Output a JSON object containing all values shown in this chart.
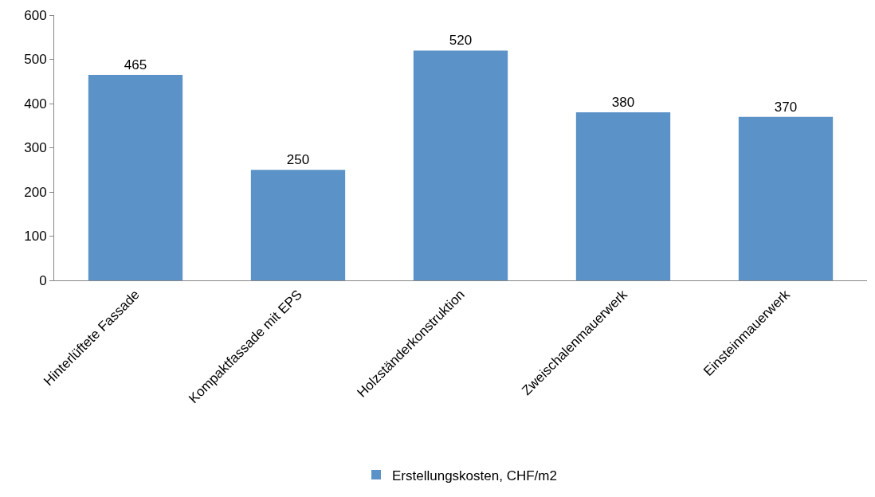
{
  "chart_data": {
    "type": "bar",
    "categories": [
      "Hinterlüftete Fassade",
      "Kompaktfassade mit EPS",
      "Holzständerkonstruktion",
      "Zweischalenmauerwerk",
      "Einsteinmauerwerk"
    ],
    "series": [
      {
        "name": "Erstellungskosten, CHF/m2",
        "color": "#5b93c8",
        "values": [
          465,
          250,
          520,
          380,
          370
        ]
      }
    ],
    "ylim": [
      0,
      600
    ],
    "yticks": [
      0,
      100,
      200,
      300,
      400,
      500,
      600
    ],
    "data_labels": true,
    "legend": "bottom"
  }
}
